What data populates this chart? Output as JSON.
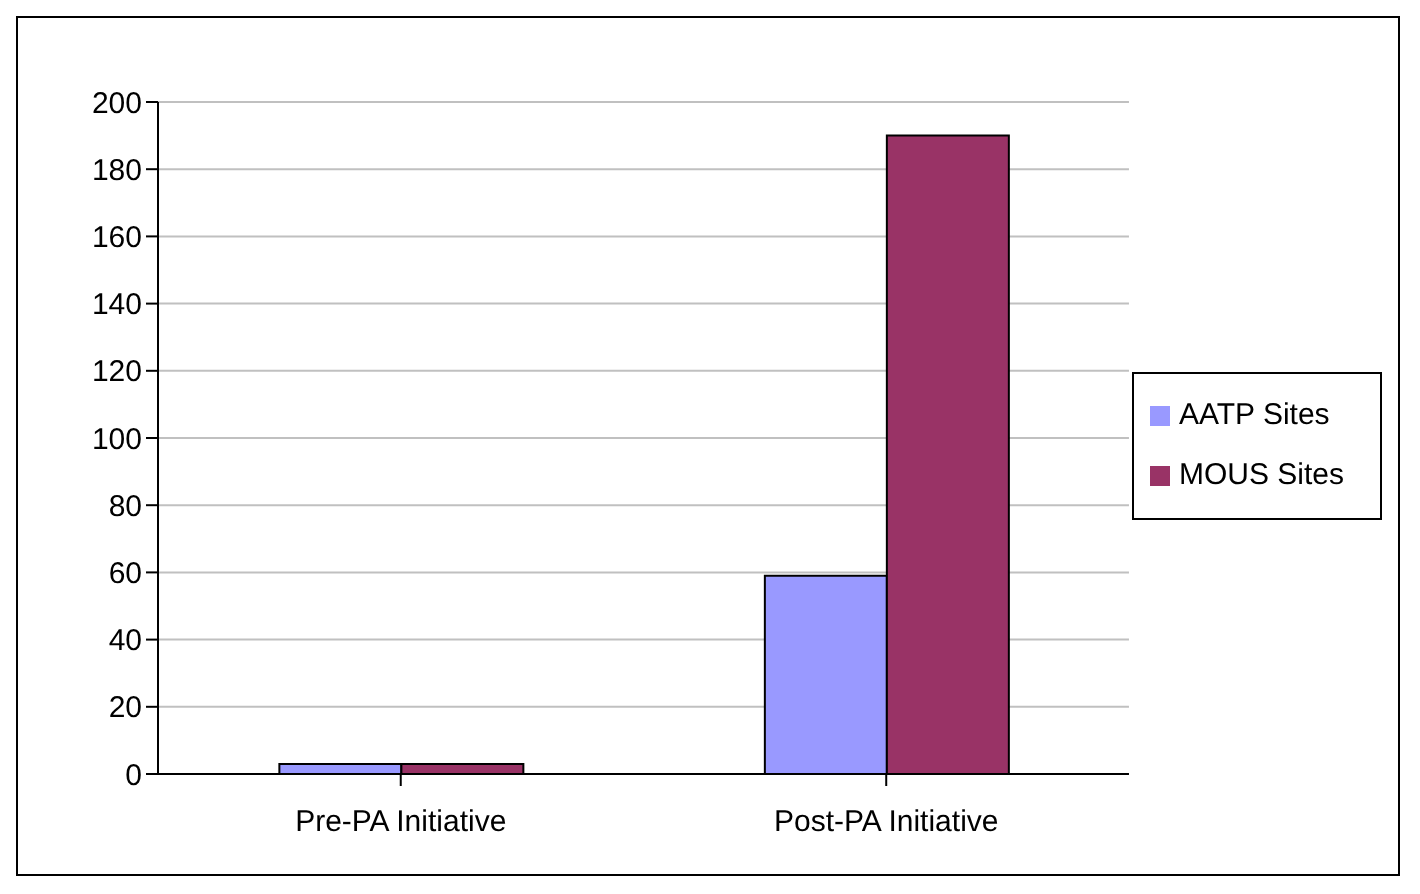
{
  "chart_data": {
    "type": "bar",
    "categories": [
      "Pre-PA Initiative",
      "Post-PA Initiative"
    ],
    "series": [
      {
        "name": "AATP Sites",
        "color": "#9999ff",
        "values": [
          3,
          59
        ]
      },
      {
        "name": "MOUS Sites",
        "color": "#993366",
        "values": [
          3,
          190
        ]
      }
    ],
    "ylim": [
      0,
      200
    ],
    "yticks": [
      0,
      20,
      40,
      60,
      80,
      100,
      120,
      140,
      160,
      180,
      200
    ],
    "grid": "y",
    "legend": "right"
  }
}
